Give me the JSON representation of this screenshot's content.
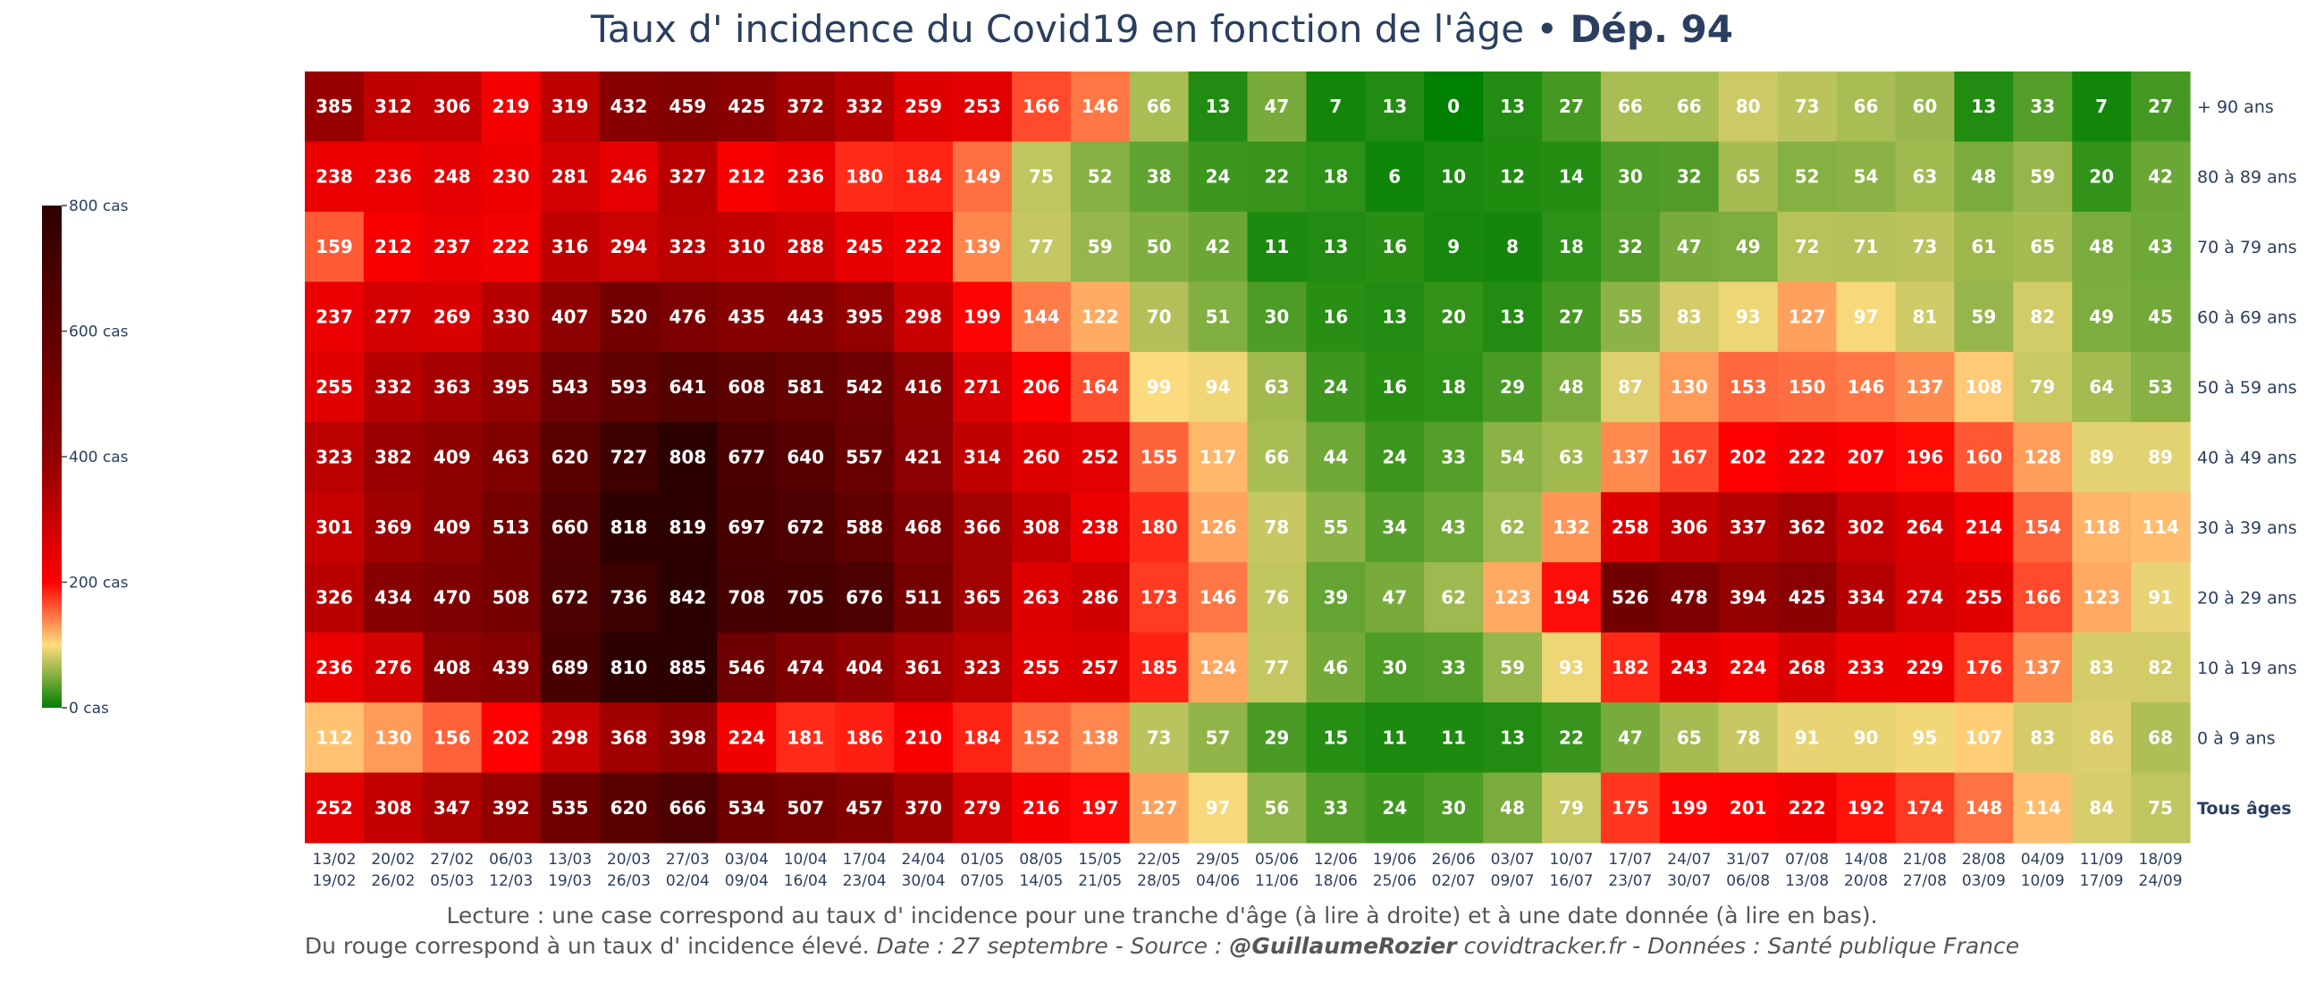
{
  "title_main": "Taux d' incidence du Covid19 en fonction de l'âge • ",
  "title_bold": "Dép. 94",
  "footer": {
    "line1": "Lecture : une case correspond au taux d' incidence pour une tranche d'âge (à lire à droite) et à une date donnée (à lire en bas).",
    "line2_start": "Du rouge correspond à un taux d' incidence élevé.  ",
    "line2_date_source": "Date : 27 septembre - Source : ",
    "line2_author": "@GuillaumeRozier",
    "line2_end": " covidtracker.fr - Données : Santé publique France"
  },
  "colors": {
    "scale": [
      "#008000",
      "#ffdc7f",
      "#ff0000",
      "#900000",
      "#2d0000"
    ],
    "scale_stops": [
      0,
      0.125,
      0.25,
      0.5,
      1.0
    ],
    "title": "#2a3f5f",
    "cell_text": "#ffffff"
  },
  "chart_data": {
    "type": "heatmap",
    "title": "Taux d' incidence du Covid19 en fonction de l'âge • Dép. 94",
    "zmin": 0,
    "zmax": 800,
    "colorbar_ticks": [
      {
        "value": 800,
        "label": "800 cas"
      },
      {
        "value": 600,
        "label": "600 cas"
      },
      {
        "value": 400,
        "label": "400 cas"
      },
      {
        "value": 200,
        "label": "200 cas"
      },
      {
        "value": 0,
        "label": "0 cas"
      }
    ],
    "x_labels": [
      [
        "13/02",
        "19/02"
      ],
      [
        "20/02",
        "26/02"
      ],
      [
        "27/02",
        "05/03"
      ],
      [
        "06/03",
        "12/03"
      ],
      [
        "13/03",
        "19/03"
      ],
      [
        "20/03",
        "26/03"
      ],
      [
        "27/03",
        "02/04"
      ],
      [
        "03/04",
        "09/04"
      ],
      [
        "10/04",
        "16/04"
      ],
      [
        "17/04",
        "23/04"
      ],
      [
        "24/04",
        "30/04"
      ],
      [
        "01/05",
        "07/05"
      ],
      [
        "08/05",
        "14/05"
      ],
      [
        "15/05",
        "21/05"
      ],
      [
        "22/05",
        "28/05"
      ],
      [
        "29/05",
        "04/06"
      ],
      [
        "05/06",
        "11/06"
      ],
      [
        "12/06",
        "18/06"
      ],
      [
        "19/06",
        "25/06"
      ],
      [
        "26/06",
        "02/07"
      ],
      [
        "03/07",
        "09/07"
      ],
      [
        "10/07",
        "16/07"
      ],
      [
        "17/07",
        "23/07"
      ],
      [
        "24/07",
        "30/07"
      ],
      [
        "31/07",
        "06/08"
      ],
      [
        "07/08",
        "13/08"
      ],
      [
        "14/08",
        "20/08"
      ],
      [
        "21/08",
        "27/08"
      ],
      [
        "28/08",
        "03/09"
      ],
      [
        "04/09",
        "10/09"
      ],
      [
        "11/09",
        "17/09"
      ],
      [
        "18/09",
        "24/09"
      ]
    ],
    "rows": [
      {
        "label": "+ 90 ans",
        "bold": false,
        "values": [
          385,
          312,
          306,
          219,
          319,
          432,
          459,
          425,
          372,
          332,
          259,
          253,
          166,
          146,
          66,
          13,
          47,
          7,
          13,
          0,
          13,
          27,
          66,
          66,
          80,
          73,
          66,
          60,
          13,
          33,
          7,
          27
        ]
      },
      {
        "label": "80 à 89 ans",
        "bold": false,
        "values": [
          238,
          236,
          248,
          230,
          281,
          246,
          327,
          212,
          236,
          180,
          184,
          149,
          75,
          52,
          38,
          24,
          22,
          18,
          6,
          10,
          12,
          14,
          30,
          32,
          65,
          52,
          54,
          63,
          48,
          59,
          20,
          42
        ]
      },
      {
        "label": "70 à 79 ans",
        "bold": false,
        "values": [
          159,
          212,
          237,
          222,
          316,
          294,
          323,
          310,
          288,
          245,
          222,
          139,
          77,
          59,
          50,
          42,
          11,
          13,
          16,
          9,
          8,
          18,
          32,
          47,
          49,
          72,
          71,
          73,
          61,
          65,
          48,
          43
        ]
      },
      {
        "label": "60 à 69 ans",
        "bold": false,
        "values": [
          237,
          277,
          269,
          330,
          407,
          520,
          476,
          435,
          443,
          395,
          298,
          199,
          144,
          122,
          70,
          51,
          30,
          16,
          13,
          20,
          13,
          27,
          55,
          83,
          93,
          127,
          97,
          81,
          59,
          82,
          49,
          45
        ]
      },
      {
        "label": "50 à 59 ans",
        "bold": false,
        "values": [
          255,
          332,
          363,
          395,
          543,
          593,
          641,
          608,
          581,
          542,
          416,
          271,
          206,
          164,
          99,
          94,
          63,
          24,
          16,
          18,
          29,
          48,
          87,
          130,
          153,
          150,
          146,
          137,
          108,
          79,
          64,
          53
        ]
      },
      {
        "label": "40 à 49 ans",
        "bold": false,
        "values": [
          323,
          382,
          409,
          463,
          620,
          727,
          808,
          677,
          640,
          557,
          421,
          314,
          260,
          252,
          155,
          117,
          66,
          44,
          24,
          33,
          54,
          63,
          137,
          167,
          202,
          222,
          207,
          196,
          160,
          128,
          89,
          89
        ]
      },
      {
        "label": "30 à 39 ans",
        "bold": false,
        "values": [
          301,
          369,
          409,
          513,
          660,
          818,
          819,
          697,
          672,
          588,
          468,
          366,
          308,
          238,
          180,
          126,
          78,
          55,
          34,
          43,
          62,
          132,
          258,
          306,
          337,
          362,
          302,
          264,
          214,
          154,
          118,
          114
        ]
      },
      {
        "label": "20 à 29 ans",
        "bold": false,
        "values": [
          326,
          434,
          470,
          508,
          672,
          736,
          842,
          708,
          705,
          676,
          511,
          365,
          263,
          286,
          173,
          146,
          76,
          39,
          47,
          62,
          123,
          194,
          526,
          478,
          394,
          425,
          334,
          274,
          255,
          166,
          123,
          91
        ]
      },
      {
        "label": "10 à 19 ans",
        "bold": false,
        "values": [
          236,
          276,
          408,
          439,
          689,
          810,
          885,
          546,
          474,
          404,
          361,
          323,
          255,
          257,
          185,
          124,
          77,
          46,
          30,
          33,
          59,
          93,
          182,
          243,
          224,
          268,
          233,
          229,
          176,
          137,
          83,
          82
        ]
      },
      {
        "label": "0 à 9 ans",
        "bold": false,
        "values": [
          112,
          130,
          156,
          202,
          298,
          368,
          398,
          224,
          181,
          186,
          210,
          184,
          152,
          138,
          73,
          57,
          29,
          15,
          11,
          11,
          13,
          22,
          47,
          65,
          78,
          91,
          90,
          95,
          107,
          83,
          86,
          68
        ]
      },
      {
        "label": "Tous âges",
        "bold": true,
        "values": [
          252,
          308,
          347,
          392,
          535,
          620,
          666,
          534,
          507,
          457,
          370,
          279,
          216,
          197,
          127,
          97,
          56,
          33,
          24,
          30,
          48,
          79,
          175,
          199,
          201,
          222,
          192,
          174,
          148,
          114,
          84,
          75
        ]
      }
    ]
  }
}
